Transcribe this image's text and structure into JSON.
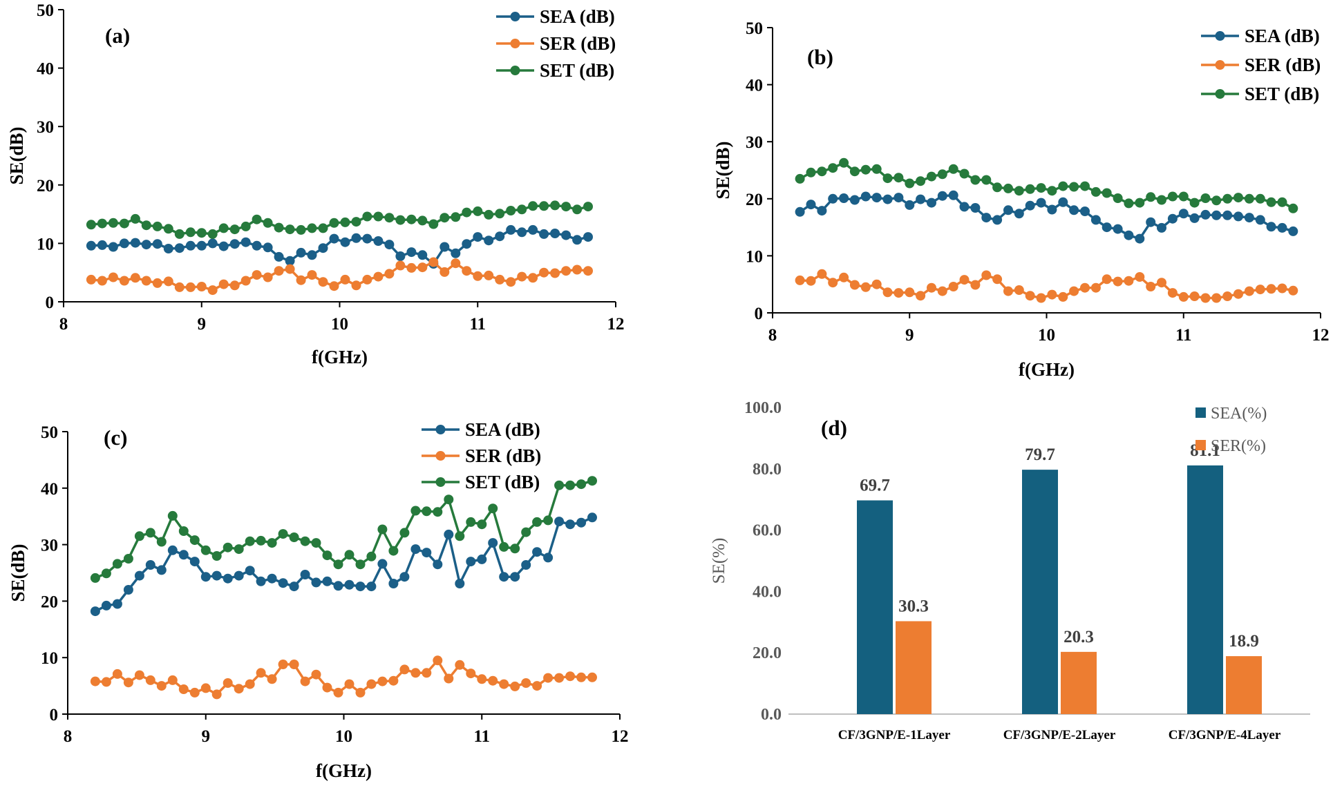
{
  "colors": {
    "sea": "#1b5f88",
    "ser": "#ed7d31",
    "set": "#267a3c",
    "bar_sea": "#14607f",
    "bar_ser": "#ed7d31"
  },
  "chart_data": [
    {
      "id": "a",
      "type": "line",
      "panel_label": "(a)",
      "xlabel": "f(GHz)",
      "ylabel": "SE(dB)",
      "xlim": [
        8,
        12
      ],
      "ylim": [
        0,
        50
      ],
      "xticks": [
        "8",
        "9",
        "10",
        "11",
        "12"
      ],
      "yticks": [
        "0",
        "10",
        "20",
        "30",
        "40",
        "50"
      ],
      "x_start": 8.2,
      "x_step": 0.08,
      "series": [
        {
          "name": "SEA (dB)",
          "key": "sea",
          "values": [
            9.6,
            9.7,
            9.4,
            10.0,
            10.1,
            9.8,
            9.9,
            9.1,
            9.2,
            9.6,
            9.6,
            10.0,
            9.5,
            9.9,
            10.2,
            9.6,
            9.3,
            7.7,
            7.0,
            8.4,
            8.0,
            9.2,
            10.8,
            10.2,
            10.9,
            10.8,
            10.4,
            9.8,
            7.8,
            8.5,
            8.0,
            6.5,
            9.4,
            8.3,
            9.9,
            11.1,
            10.5,
            11.2,
            12.3,
            11.9,
            12.3,
            11.6,
            11.7,
            11.4,
            10.6,
            11.1
          ]
        },
        {
          "name": "SER (dB)",
          "key": "ser",
          "values": [
            3.8,
            3.6,
            4.2,
            3.6,
            4.1,
            3.6,
            3.2,
            3.5,
            2.5,
            2.5,
            2.6,
            2.0,
            3.0,
            2.8,
            3.6,
            4.6,
            4.2,
            5.3,
            5.6,
            3.7,
            4.6,
            3.4,
            2.7,
            3.8,
            2.8,
            3.8,
            4.3,
            4.8,
            6.2,
            5.8,
            5.9,
            6.8,
            5.1,
            6.6,
            5.3,
            4.4,
            4.5,
            3.8,
            3.4,
            4.3,
            4.1,
            5.0,
            4.9,
            5.3,
            5.5,
            5.3
          ]
        },
        {
          "name": "SET (dB)",
          "key": "set",
          "values": [
            13.2,
            13.4,
            13.5,
            13.4,
            14.2,
            13.1,
            12.9,
            12.5,
            11.6,
            11.9,
            11.8,
            11.6,
            12.6,
            12.4,
            12.9,
            14.1,
            13.5,
            12.7,
            12.4,
            12.3,
            12.6,
            12.6,
            13.5,
            13.6,
            13.7,
            14.6,
            14.6,
            14.4,
            14.0,
            14.1,
            13.9,
            13.3,
            14.4,
            14.5,
            15.3,
            15.5,
            14.9,
            15.1,
            15.6,
            15.8,
            16.4,
            16.4,
            16.5,
            16.3,
            15.8,
            16.3
          ]
        }
      ],
      "legend": [
        "SEA (dB)",
        "SER (dB)",
        "SET (dB)"
      ]
    },
    {
      "id": "b",
      "type": "line",
      "panel_label": "(b)",
      "xlabel": "f(GHz)",
      "ylabel": "SE(dB)",
      "xlim": [
        8,
        12
      ],
      "ylim": [
        0,
        50
      ],
      "xticks": [
        "8",
        "9",
        "10",
        "11",
        "12"
      ],
      "yticks": [
        "0",
        "10",
        "20",
        "30",
        "40",
        "50"
      ],
      "x_start": 8.2,
      "x_step": 0.08,
      "series": [
        {
          "name": "SEA (dB)",
          "key": "sea",
          "values": [
            17.7,
            19.0,
            17.9,
            20.0,
            20.1,
            19.8,
            20.4,
            20.2,
            19.9,
            20.2,
            18.9,
            19.9,
            19.3,
            20.5,
            20.6,
            18.6,
            18.4,
            16.7,
            16.3,
            18.0,
            17.4,
            18.8,
            19.3,
            18.1,
            19.4,
            18.0,
            17.8,
            16.3,
            15.0,
            14.7,
            13.6,
            13.0,
            15.9,
            14.9,
            16.5,
            17.4,
            16.6,
            17.2,
            17.1,
            17.1,
            16.9,
            16.7,
            16.3,
            15.1,
            14.9,
            14.3
          ]
        },
        {
          "name": "SER (dB)",
          "key": "ser",
          "values": [
            5.7,
            5.6,
            6.8,
            5.3,
            6.2,
            4.9,
            4.5,
            5.0,
            3.6,
            3.5,
            3.6,
            3.0,
            4.4,
            3.8,
            4.6,
            5.8,
            4.9,
            6.6,
            5.9,
            3.8,
            4.0,
            3.0,
            2.6,
            3.2,
            2.8,
            3.8,
            4.4,
            4.4,
            5.9,
            5.5,
            5.6,
            6.3,
            4.6,
            5.3,
            3.5,
            2.8,
            2.9,
            2.6,
            2.6,
            2.9,
            3.3,
            3.8,
            4.1,
            4.2,
            4.3,
            3.9
          ]
        },
        {
          "name": "SET (dB)",
          "key": "set",
          "values": [
            23.5,
            24.6,
            24.8,
            25.4,
            26.3,
            24.8,
            25.1,
            25.2,
            23.6,
            23.7,
            22.7,
            23.1,
            23.9,
            24.3,
            25.2,
            24.4,
            23.3,
            23.3,
            22.0,
            21.8,
            21.4,
            21.7,
            21.9,
            21.4,
            22.2,
            22.1,
            22.2,
            21.2,
            21.0,
            20.1,
            19.2,
            19.3,
            20.3,
            19.8,
            20.4,
            20.4,
            19.3,
            20.1,
            19.7,
            20.0,
            20.2,
            20.0,
            20.0,
            19.4,
            19.4,
            18.3
          ]
        }
      ],
      "legend": [
        "SEA (dB)",
        "SER (dB)",
        "SET (dB)"
      ]
    },
    {
      "id": "c",
      "type": "line",
      "panel_label": "(c)",
      "xlabel": "f(GHz)",
      "ylabel": "SE(dB)",
      "xlim": [
        8,
        12
      ],
      "ylim": [
        0,
        50
      ],
      "xticks": [
        "8",
        "9",
        "10",
        "11",
        "12"
      ],
      "yticks": [
        "0",
        "10",
        "20",
        "30",
        "40",
        "50"
      ],
      "x_start": 8.2,
      "x_step": 0.08,
      "series": [
        {
          "name": "SEA (dB)",
          "key": "sea",
          "values": [
            18.2,
            19.2,
            19.5,
            22.0,
            24.5,
            26.4,
            25.5,
            29.0,
            28.2,
            27.0,
            24.3,
            24.5,
            24.0,
            24.5,
            25.4,
            23.5,
            24.0,
            23.2,
            22.6,
            24.7,
            23.3,
            23.5,
            22.7,
            22.9,
            22.6,
            22.6,
            26.6,
            23.1,
            24.3,
            29.2,
            28.6,
            26.5,
            31.8,
            23.1,
            27.0,
            27.4,
            30.3,
            24.3,
            24.3,
            26.4,
            28.7,
            27.7,
            34.1,
            33.6,
            33.9,
            34.8
          ]
        },
        {
          "name": "SER (dB)",
          "key": "ser",
          "values": [
            5.8,
            5.7,
            7.1,
            5.6,
            6.9,
            6.0,
            5.0,
            6.0,
            4.4,
            3.8,
            4.6,
            3.5,
            5.5,
            4.5,
            5.3,
            7.3,
            6.2,
            8.8,
            8.8,
            5.8,
            7.0,
            4.7,
            3.8,
            5.3,
            3.8,
            5.3,
            5.8,
            5.9,
            7.9,
            7.3,
            7.3,
            9.5,
            6.3,
            8.7,
            7.2,
            6.2,
            5.9,
            5.3,
            4.9,
            5.5,
            5.0,
            6.4,
            6.4,
            6.7,
            6.5,
            6.5
          ]
        },
        {
          "name": "SET (dB)",
          "key": "set",
          "values": [
            24.1,
            24.9,
            26.6,
            27.5,
            31.5,
            32.1,
            30.5,
            35.1,
            32.4,
            30.8,
            29.0,
            28.0,
            29.5,
            29.2,
            30.6,
            30.7,
            30.3,
            31.9,
            31.3,
            30.6,
            30.3,
            28.1,
            26.5,
            28.2,
            26.5,
            27.9,
            32.7,
            28.9,
            32.1,
            36.0,
            35.9,
            35.8,
            38.0,
            31.5,
            34.0,
            33.6,
            36.4,
            29.6,
            29.3,
            32.2,
            34.0,
            34.3,
            40.5,
            40.5,
            40.7,
            41.3
          ]
        }
      ],
      "legend": [
        "SEA (dB)",
        "SER (dB)",
        "SET (dB)"
      ]
    },
    {
      "id": "d",
      "type": "bar",
      "panel_label": "(d)",
      "ylabel": "SE(%)",
      "ylim": [
        0,
        100
      ],
      "yticks": [
        "0.0",
        "20.0",
        "40.0",
        "60.0",
        "80.0",
        "100.0"
      ],
      "categories": [
        "CF/3GNP/E-1Layer",
        "CF/3GNP/E-2Layer",
        "CF/3GNP/E-4Layer"
      ],
      "series": [
        {
          "name": "SEA(%)",
          "key": "bar_sea",
          "values": [
            69.7,
            79.7,
            81.1
          ],
          "labels": [
            "69.7",
            "79.7",
            "81.1"
          ]
        },
        {
          "name": "SER(%)",
          "key": "bar_ser",
          "values": [
            30.3,
            20.3,
            18.9
          ],
          "labels": [
            "30.3",
            "20.3",
            "18.9"
          ]
        }
      ],
      "legend": [
        "SEA(%)",
        "SER(%)"
      ]
    }
  ]
}
